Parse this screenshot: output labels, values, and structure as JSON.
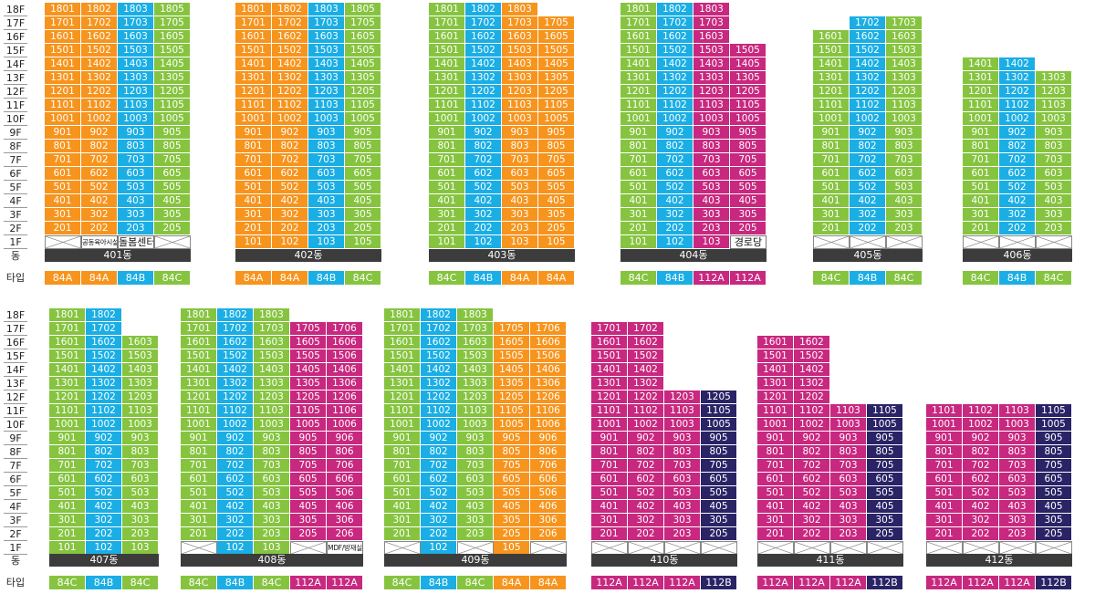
{
  "floor_labels": [
    "18F",
    "17F",
    "16F",
    "15F",
    "14F",
    "13F",
    "12F",
    "11F",
    "10F",
    "9F",
    "8F",
    "7F",
    "6F",
    "5F",
    "4F",
    "3F",
    "2F",
    "1F"
  ],
  "dong_label": "동",
  "type_label": "타입",
  "colors": {
    "84A": "#f7941d",
    "84B": "#1aaee5",
    "84C": "#86c440",
    "112A": "#c8287f",
    "112B": "#2a2366"
  },
  "buildings": [
    {
      "name": "401동",
      "types": [
        "84A",
        "84A",
        "84B",
        "84C"
      ],
      "top": 18,
      "columns": [
        {
          "no": "01",
          "color": "O",
          "top": 18
        },
        {
          "no": "02",
          "color": "O",
          "top": 18
        },
        {
          "no": "03",
          "color": "B",
          "top": 18
        },
        {
          "no": "05",
          "color": "G",
          "top": 18
        }
      ],
      "first_floor": [
        {
          "kind": "x"
        },
        {
          "kind": "text",
          "text": "공동육아시설",
          "small": true
        },
        {
          "kind": "text",
          "text": "돌봄센터"
        },
        {
          "kind": "x"
        }
      ]
    },
    {
      "name": "402동",
      "types": [
        "84A",
        "84A",
        "84B",
        "84C"
      ],
      "top": 18,
      "columns": [
        {
          "no": "01",
          "color": "O",
          "top": 18
        },
        {
          "no": "02",
          "color": "O",
          "top": 18
        },
        {
          "no": "03",
          "color": "B",
          "top": 18
        },
        {
          "no": "05",
          "color": "G",
          "top": 18
        }
      ],
      "first_floor": [
        {
          "kind": "unit"
        },
        {
          "kind": "unit"
        },
        {
          "kind": "unit"
        },
        {
          "kind": "unit"
        }
      ]
    },
    {
      "name": "403동",
      "types": [
        "84C",
        "84B",
        "84A",
        "84A"
      ],
      "top": 18,
      "columns": [
        {
          "no": "01",
          "color": "G",
          "top": 18
        },
        {
          "no": "02",
          "color": "B",
          "top": 18
        },
        {
          "no": "03",
          "color": "O",
          "top": 18
        },
        {
          "no": "05",
          "color": "O",
          "top": 17
        }
      ],
      "first_floor": [
        {
          "kind": "unit"
        },
        {
          "kind": "unit"
        },
        {
          "kind": "unit"
        },
        {
          "kind": "unit"
        }
      ]
    },
    {
      "name": "404동",
      "types": [
        "84C",
        "84B",
        "112A",
        "112A"
      ],
      "top": 18,
      "columns": [
        {
          "no": "01",
          "color": "G",
          "top": 18
        },
        {
          "no": "02",
          "color": "B",
          "top": 18
        },
        {
          "no": "03",
          "color": "M",
          "top": 18
        },
        {
          "no": "05",
          "color": "M",
          "top": 15
        }
      ],
      "first_floor": [
        {
          "kind": "unit"
        },
        {
          "kind": "unit"
        },
        {
          "kind": "unit"
        },
        {
          "kind": "text",
          "text": "경로당"
        }
      ]
    },
    {
      "name": "405동",
      "types": [
        "84C",
        "84B",
        "84C"
      ],
      "top": 18,
      "columns": [
        {
          "no": "01",
          "color": "G",
          "top": 16
        },
        {
          "no": "02",
          "color": "B",
          "top": 17
        },
        {
          "no": "03",
          "color": "G",
          "top": 17
        }
      ],
      "first_floor": [
        {
          "kind": "x"
        },
        {
          "kind": "x"
        },
        {
          "kind": "x"
        }
      ]
    },
    {
      "name": "406동",
      "types": [
        "84C",
        "84B",
        "84C"
      ],
      "top": 18,
      "columns": [
        {
          "no": "01",
          "color": "G",
          "top": 14
        },
        {
          "no": "02",
          "color": "B",
          "top": 14
        },
        {
          "no": "03",
          "color": "G",
          "top": 13
        }
      ],
      "first_floor": [
        {
          "kind": "x"
        },
        {
          "kind": "x"
        },
        {
          "kind": "x"
        }
      ]
    },
    {
      "name": "407동",
      "types": [
        "84C",
        "84B",
        "84C"
      ],
      "top": 18,
      "columns": [
        {
          "no": "01",
          "color": "G",
          "top": 18
        },
        {
          "no": "02",
          "color": "B",
          "top": 18
        },
        {
          "no": "03",
          "color": "G",
          "top": 16
        }
      ],
      "first_floor": [
        {
          "kind": "unit"
        },
        {
          "kind": "unit"
        },
        {
          "kind": "unit"
        }
      ]
    },
    {
      "name": "408동",
      "types": [
        "84C",
        "84B",
        "84C",
        "112A",
        "112A"
      ],
      "top": 18,
      "columns": [
        {
          "no": "01",
          "color": "G",
          "top": 18
        },
        {
          "no": "02",
          "color": "B",
          "top": 18
        },
        {
          "no": "03",
          "color": "G",
          "top": 18
        },
        {
          "no": "05",
          "color": "M",
          "top": 17
        },
        {
          "no": "06",
          "color": "M",
          "top": 17
        }
      ],
      "first_floor": [
        {
          "kind": "x"
        },
        {
          "kind": "unit"
        },
        {
          "kind": "unit"
        },
        {
          "kind": "x"
        },
        {
          "kind": "text",
          "text": "MDF/방재실",
          "small": true
        }
      ]
    },
    {
      "name": "409동",
      "types": [
        "84C",
        "84B",
        "84C",
        "84A",
        "84A"
      ],
      "top": 18,
      "columns": [
        {
          "no": "01",
          "color": "G",
          "top": 18
        },
        {
          "no": "02",
          "color": "B",
          "top": 18
        },
        {
          "no": "03",
          "color": "G",
          "top": 18
        },
        {
          "no": "05",
          "color": "O",
          "top": 17
        },
        {
          "no": "06",
          "color": "O",
          "top": 17
        }
      ],
      "first_floor": [
        {
          "kind": "x"
        },
        {
          "kind": "unit"
        },
        {
          "kind": "x"
        },
        {
          "kind": "unit",
          "label": "105"
        },
        {
          "kind": "x"
        }
      ]
    },
    {
      "name": "410동",
      "types": [
        "112A",
        "112A",
        "112A",
        "112B"
      ],
      "top": 18,
      "columns": [
        {
          "no": "01",
          "color": "M",
          "top": 17
        },
        {
          "no": "02",
          "color": "M",
          "top": 17
        },
        {
          "no": "03",
          "color": "M",
          "top": 12
        },
        {
          "no": "05",
          "color": "N",
          "top": 12
        }
      ],
      "first_floor": [
        {
          "kind": "x"
        },
        {
          "kind": "x"
        },
        {
          "kind": "x"
        },
        {
          "kind": "x"
        }
      ]
    },
    {
      "name": "411동",
      "types": [
        "112A",
        "112A",
        "112A",
        "112B"
      ],
      "top": 18,
      "columns": [
        {
          "no": "01",
          "color": "M",
          "top": 16
        },
        {
          "no": "02",
          "color": "M",
          "top": 16
        },
        {
          "no": "03",
          "color": "M",
          "top": 11
        },
        {
          "no": "05",
          "color": "N",
          "top": 11
        }
      ],
      "first_floor": [
        {
          "kind": "x"
        },
        {
          "kind": "x"
        },
        {
          "kind": "x"
        },
        {
          "kind": "x"
        }
      ]
    },
    {
      "name": "412동",
      "types": [
        "112A",
        "112A",
        "112A",
        "112B"
      ],
      "top": 18,
      "columns": [
        {
          "no": "01",
          "color": "M",
          "top": 11
        },
        {
          "no": "02",
          "color": "M",
          "top": 11
        },
        {
          "no": "03",
          "color": "M",
          "top": 11
        },
        {
          "no": "05",
          "color": "N",
          "top": 11
        }
      ],
      "first_floor": [
        {
          "kind": "x"
        },
        {
          "kind": "x"
        },
        {
          "kind": "x"
        },
        {
          "kind": "x"
        }
      ]
    }
  ]
}
